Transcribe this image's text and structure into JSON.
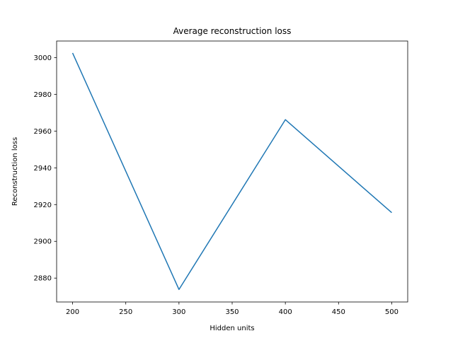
{
  "chart_data": {
    "type": "line",
    "title": "Average reconstruction loss",
    "xlabel": "Hidden units",
    "ylabel": "Reconstruction loss",
    "x": [
      200,
      300,
      400,
      500
    ],
    "series": [
      {
        "values": [
          3002.5,
          2873.8,
          2966.2,
          2915.6
        ],
        "color": "#1f77b4"
      }
    ],
    "xlim": [
      185,
      515
    ],
    "ylim": [
      2867,
      3009
    ],
    "xticks": [
      200,
      250,
      300,
      350,
      400,
      450,
      500
    ],
    "yticks": [
      2880,
      2900,
      2920,
      2940,
      2960,
      2980,
      3000
    ],
    "grid": false,
    "legend": "none"
  }
}
